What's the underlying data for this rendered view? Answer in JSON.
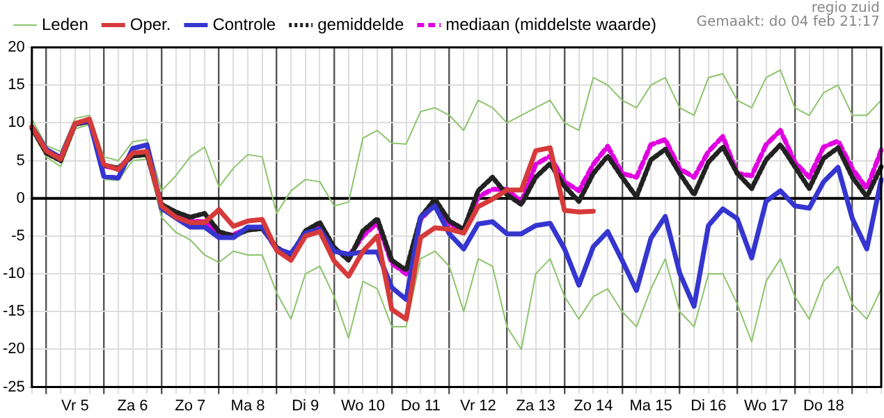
{
  "chart_data": {
    "type": "line",
    "legend": "top",
    "grid": true,
    "annotations": [
      "regio zuid",
      "Gemaakt: do 04 feb 21:17"
    ],
    "ylim": [
      -25,
      20
    ],
    "yticks": [
      -25,
      -20,
      -15,
      -10,
      -5,
      0,
      5,
      10,
      15,
      20
    ],
    "categories": [
      null,
      null,
      null,
      "Vr 5",
      null,
      null,
      null,
      "Za 6",
      null,
      null,
      null,
      "Zo 7",
      null,
      null,
      null,
      "Ma 8",
      null,
      null,
      null,
      "Di 9",
      null,
      null,
      null,
      "Wo 10",
      null,
      null,
      null,
      "Do 11",
      null,
      null,
      null,
      "Vr 12",
      null,
      null,
      null,
      "Za 13",
      null,
      null,
      null,
      "Zo 14",
      null,
      null,
      null,
      "Ma 15",
      null,
      null,
      null,
      "Di 16",
      null,
      null,
      null,
      "Wo 17",
      null,
      null,
      null,
      "Do 18",
      null,
      null,
      null,
      null
    ],
    "ref_lines": [
      {
        "axis": "y",
        "value": 0,
        "color": "#000000"
      }
    ],
    "series": [
      {
        "name": "Leden",
        "color": "#8cc46c",
        "line_style": "solid",
        "values": [
          10.5,
          7,
          6.2,
          10.6,
          11,
          5.5,
          5,
          7.5,
          7.8,
          1,
          3,
          5.5,
          6.8,
          1.5,
          4,
          5.8,
          5.5,
          -2,
          1,
          2.5,
          2.2,
          -1,
          -0.5,
          8,
          9,
          7.3,
          7.2,
          11.5,
          12,
          11,
          9,
          13,
          12,
          10,
          11,
          12,
          13,
          10,
          9,
          16,
          15,
          13,
          12,
          15,
          16,
          12,
          11,
          16,
          16.5,
          13,
          12,
          16,
          17,
          12,
          11,
          14,
          15,
          11,
          11,
          13
        ]
      },
      {
        "name": null,
        "color": "#8cc46c",
        "line_style": "solid",
        "values": [
          9,
          5.5,
          4.2,
          9.2,
          9.8,
          2.5,
          2.4,
          5,
          5.2,
          -2.5,
          -4.5,
          -5.5,
          -7.5,
          -8.5,
          -7,
          -7.5,
          -7.5,
          -12.5,
          -16,
          -10,
          -9,
          -13,
          -18.5,
          -11,
          -12,
          -17,
          -17,
          -8,
          -7,
          -9,
          -15,
          -8,
          -9,
          -17,
          -20,
          -10,
          -8,
          -13,
          -16,
          -13,
          -12,
          -15,
          -17,
          -12,
          -8,
          -15,
          -17,
          -10,
          -10,
          -14,
          -19,
          -11,
          -8,
          -13,
          -16,
          -11,
          -9,
          -14,
          -16,
          -12
        ]
      },
      {
        "name": "Oper.",
        "color": "#d63a3a",
        "line_style": "solid",
        "values": [
          9.5,
          6.3,
          5.2,
          9.9,
          10.5,
          4.5,
          3.8,
          6,
          6.2,
          -1,
          -2.5,
          -3.2,
          -3.2,
          -1.5,
          -3.7,
          -3,
          -2.8,
          -6.9,
          -8.2,
          -5,
          -4.4,
          -8.3,
          -10.3,
          -7,
          -5,
          -14.7,
          -16,
          -5.2,
          -3.9,
          -4.1,
          -4.6,
          -1.1,
          -0.1,
          1.1,
          1.1,
          6.3,
          6.7,
          -1.6,
          -1.8,
          -1.7,
          null,
          null,
          null,
          null,
          null,
          null,
          null,
          null,
          null,
          null,
          null,
          null,
          null,
          null,
          null,
          null,
          null,
          null,
          null,
          null
        ]
      },
      {
        "name": "Controle",
        "color": "#3535d0",
        "line_style": "solid",
        "values": [
          9.5,
          6.5,
          5.4,
          9.9,
          10.3,
          2.9,
          2.7,
          6.6,
          7.1,
          -1.3,
          -2.6,
          -3.8,
          -3.8,
          -5.2,
          -5.2,
          -3.8,
          -3.8,
          -6.7,
          -7.3,
          -4.6,
          -4.1,
          -7,
          -7.4,
          -7.1,
          -7.1,
          -11.8,
          -13.4,
          -2.5,
          -1,
          -4.7,
          -6.7,
          -3.4,
          -3.1,
          -4.7,
          -4.7,
          -3.6,
          -3.3,
          -6.7,
          -11.5,
          -6.4,
          -4.4,
          -8.2,
          -12.2,
          -5.3,
          -2.4,
          -9.9,
          -14.3,
          -3.6,
          -1.4,
          -2.7,
          -7.9,
          -0.4,
          1,
          -1,
          -1.3,
          2.2,
          4.1,
          -2.7,
          -6.7,
          2.5
        ]
      },
      {
        "name": "gemiddelde",
        "color": "#222222",
        "line_style": "dotted",
        "values": [
          9.3,
          6,
          5,
          9.8,
          10.2,
          4.4,
          4,
          5.6,
          5.8,
          -0.8,
          -1.8,
          -2.5,
          -2,
          -4.4,
          -5,
          -4.2,
          -4,
          -6.5,
          -7.6,
          -4.3,
          -3.2,
          -6.5,
          -8.2,
          -4.3,
          -2.7,
          -8.2,
          -9.5,
          -2.5,
          -0.1,
          -3,
          -4.1,
          1,
          2.8,
          0.5,
          -0.8,
          2.8,
          4.6,
          1.6,
          -0.4,
          3.3,
          5.6,
          2.8,
          0.2,
          5.1,
          6.5,
          3.3,
          0.5,
          4.8,
          6.8,
          3.3,
          1.3,
          5.1,
          7.1,
          4.2,
          1.3,
          5.3,
          6.7,
          2.8,
          0.2,
          4.2
        ]
      },
      {
        "name": "mediaan (middelste waarde)",
        "color": "#e000e0",
        "line_style": "dashed",
        "values": [
          null,
          null,
          null,
          null,
          null,
          4.3,
          3.9,
          5.9,
          6.1,
          -0.9,
          -2.3,
          -3,
          -3.1,
          -5,
          -4.8,
          -4,
          -3.8,
          -6.8,
          -7.6,
          -4.6,
          -3.8,
          -6.9,
          -7.7,
          -5,
          -3.2,
          -8.6,
          -10,
          -2.8,
          -0.8,
          -3.3,
          -4.5,
          0.2,
          1.2,
          1.2,
          -0.5,
          4.5,
          5.6,
          2.2,
          1,
          4.5,
          6.9,
          3.3,
          2.8,
          7.1,
          7.8,
          3.9,
          2.8,
          6.2,
          8.2,
          3.3,
          3,
          7.1,
          9,
          4.8,
          2.8,
          6.8,
          7.6,
          3.9,
          1.3,
          6.4
        ]
      }
    ]
  }
}
